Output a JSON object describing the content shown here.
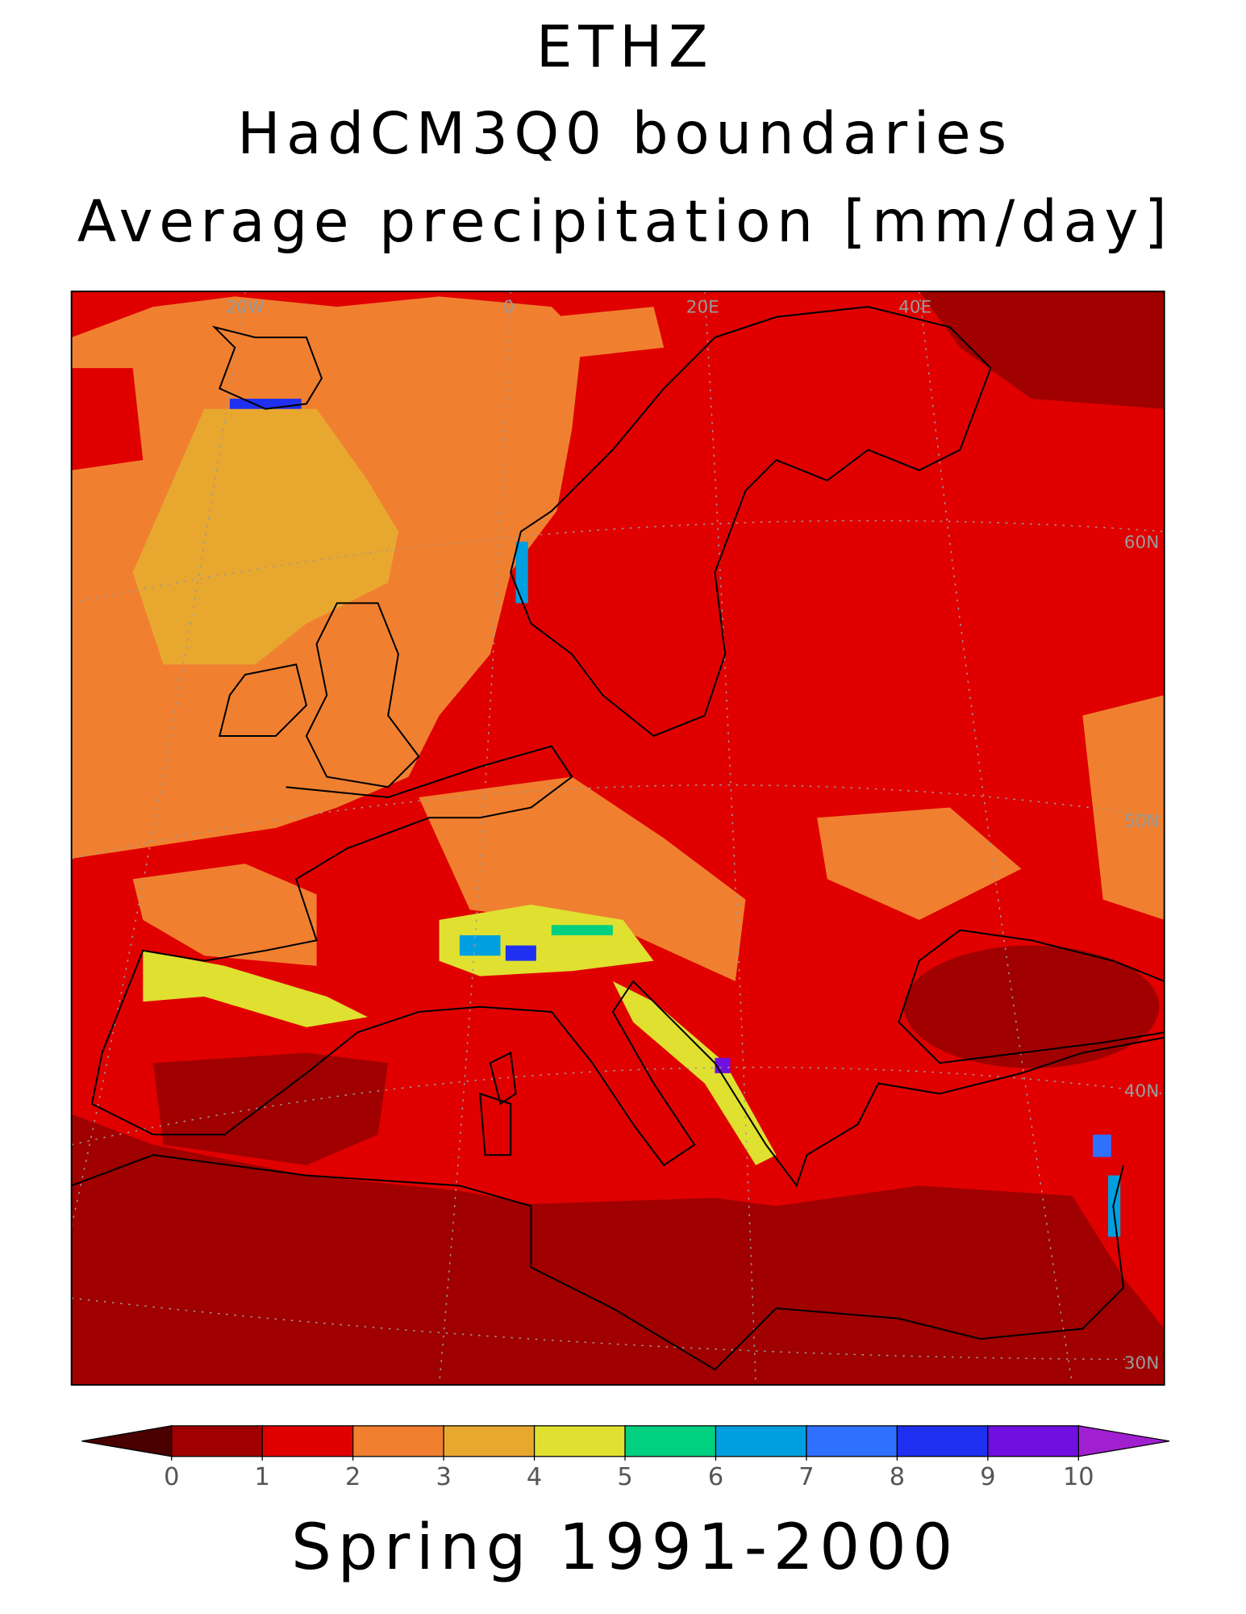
{
  "header": {
    "title": "ETHZ",
    "subtitle": "HadCM3Q0 boundaries",
    "variable": "Average precipitation [mm/day]"
  },
  "map": {
    "longitude_labels": [
      "20W",
      "0",
      "20E",
      "40E"
    ],
    "latitude_labels": [
      "60N",
      "50N",
      "40N",
      "30N"
    ]
  },
  "colorbar": {
    "ticks": [
      0,
      1,
      2,
      3,
      4,
      5,
      6,
      7,
      8,
      9,
      10
    ],
    "under_color": "#4a0000",
    "over_color": "#a020d0",
    "colors": [
      "#a00000",
      "#e00000",
      "#f08030",
      "#e8a830",
      "#e0e030",
      "#00d080",
      "#00a0e0",
      "#3070ff",
      "#2030f0",
      "#7010e0"
    ]
  },
  "footer": "Spring 1991-2000"
}
